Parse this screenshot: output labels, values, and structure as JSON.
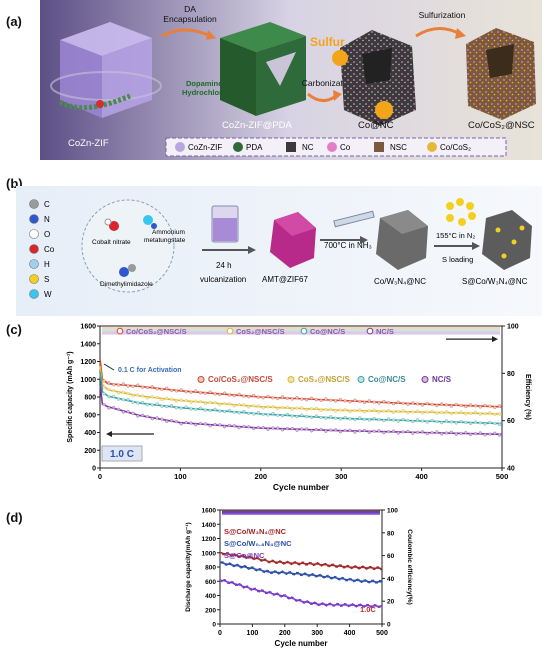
{
  "panel_labels": {
    "a": "(a)",
    "b": "(b)",
    "c": "(c)",
    "d": "(d)"
  },
  "panel_a": {
    "stages": [
      "CoZn-ZIF",
      "CoZn-ZIF@PDA",
      "Co@NC",
      "Co/CoS₂@NSC"
    ],
    "arrows": {
      "encapsulation": "DA\nEncapsulation",
      "dopamine": "Dopamine\nHydrochloride",
      "carbonization": "Carbonization",
      "sulfurization": "Sulfurization",
      "sulfur": "Sulfur"
    },
    "legend": [
      "CoZn-ZIF",
      "PDA",
      "NC",
      "Co",
      "NSC",
      "Co/CoS₂"
    ],
    "colors": {
      "bg": "#6b5f8e",
      "zif": "#b9a6e0",
      "pda": "#2f6b3a",
      "nc": "#3a3a3a",
      "co": "#e47dc8",
      "nsc": "#7a5a3a",
      "cos2": "#e6b83a",
      "sulfur": "#f2a51a",
      "arrow": "#e8803a"
    }
  },
  "panel_b": {
    "legend": [
      {
        "sym": "C",
        "color": "#9a9a9a"
      },
      {
        "sym": "N",
        "color": "#2f58d0"
      },
      {
        "sym": "O",
        "color": "#ffffff"
      },
      {
        "sym": "Co",
        "color": "#d8262a"
      },
      {
        "sym": "H",
        "color": "#9fd0ee"
      },
      {
        "sym": "S",
        "color": "#f3d020"
      },
      {
        "sym": "W",
        "color": "#39c6ee"
      }
    ],
    "reagents": [
      "Cobalt nitrate",
      "Ammonium\nmetatungstate",
      "Dimethylimidazole"
    ],
    "steps": [
      "24 h",
      "vulcanization",
      "700°C in NH₃",
      "155°C in N₂",
      "S loading"
    ],
    "products": [
      "AMT@ZIF67",
      "Co/W₃N₄@NC",
      "S@Co/W₃N₄@NC"
    ]
  },
  "chart_data": [
    {
      "type": "line",
      "xlabel": "Cycle number",
      "ylabel": "Specific capacity (mAh g⁻¹)",
      "ylabel2": "Efficiency (%)",
      "xlim": [
        0,
        500
      ],
      "ylim": [
        0,
        1600
      ],
      "ylim2": [
        40,
        100
      ],
      "xticks": [
        0,
        100,
        200,
        300,
        400,
        500
      ],
      "yticks": [
        0,
        200,
        400,
        600,
        800,
        1000,
        1200,
        1400,
        1600
      ],
      "yticks2": [
        40,
        60,
        80,
        100
      ],
      "annotations": [
        "0.1 C for Activation",
        "1.0 C"
      ],
      "legend_top": [
        "Co/CoS₂@NSC/S",
        "CoS₂@NSC/S",
        "Co@NC/S",
        "NC/S"
      ],
      "legend_mid": [
        "Co/CoS₂@NSC/S",
        "CoS₂@NSC/S",
        "Co@NC/S",
        "NC/S"
      ],
      "series": [
        {
          "name": "Co/CoS₂@NSC/S",
          "color": "#d0453a",
          "marker_color": "#f0c8b0",
          "eff": 99,
          "points": [
            [
              0,
              1230
            ],
            [
              3,
              1000
            ],
            [
              10,
              950
            ],
            [
              50,
              920
            ],
            [
              100,
              870
            ],
            [
              200,
              800
            ],
            [
              300,
              760
            ],
            [
              400,
              720
            ],
            [
              500,
              690
            ]
          ]
        },
        {
          "name": "CoS₂@NSC/S",
          "color": "#d8b838",
          "marker_color": "#f2e6a6",
          "eff": 98,
          "points": [
            [
              0,
              1150
            ],
            [
              3,
              940
            ],
            [
              10,
              880
            ],
            [
              50,
              810
            ],
            [
              100,
              760
            ],
            [
              200,
              690
            ],
            [
              300,
              650
            ],
            [
              400,
              630
            ],
            [
              500,
              610
            ]
          ]
        },
        {
          "name": "Co@NC/S",
          "color": "#3aa0a0",
          "marker_color": "#bde6e6",
          "eff": 98,
          "points": [
            [
              0,
              1080
            ],
            [
              3,
              860
            ],
            [
              10,
              810
            ],
            [
              50,
              730
            ],
            [
              100,
              680
            ],
            [
              200,
              610
            ],
            [
              300,
              560
            ],
            [
              400,
              530
            ],
            [
              500,
              500
            ]
          ]
        },
        {
          "name": "NC/S",
          "color": "#7a3a9a",
          "marker_color": "#d8b8e6",
          "eff": 97,
          "points": [
            [
              0,
              950
            ],
            [
              3,
              720
            ],
            [
              10,
              690
            ],
            [
              50,
              590
            ],
            [
              100,
              510
            ],
            [
              200,
              450
            ],
            [
              300,
              420
            ],
            [
              400,
              400
            ],
            [
              500,
              380
            ]
          ]
        }
      ]
    },
    {
      "type": "line",
      "xlabel": "Cycle number",
      "ylabel": "Discharge capacity(mAh g⁻¹)",
      "ylabel2": "Coulombic efficiency(%)",
      "xlim": [
        0,
        500
      ],
      "ylim": [
        0,
        1600
      ],
      "ylim2": [
        0,
        100
      ],
      "xticks": [
        0,
        100,
        200,
        300,
        400,
        500
      ],
      "yticks": [
        0,
        200,
        400,
        600,
        800,
        1000,
        1200,
        1400,
        1600
      ],
      "yticks2": [
        0,
        20,
        40,
        60,
        80,
        100
      ],
      "annotations": [
        "1.0C"
      ],
      "series": [
        {
          "name": "S@Co/W₃N₄@NC",
          "color": "#a02828",
          "eff": 99,
          "points": [
            [
              0,
              1000
            ],
            [
              50,
              960
            ],
            [
              100,
              930
            ],
            [
              150,
              880
            ],
            [
              200,
              860
            ],
            [
              250,
              850
            ],
            [
              300,
              840
            ],
            [
              350,
              820
            ],
            [
              400,
              800
            ],
            [
              450,
              790
            ],
            [
              500,
              780
            ]
          ]
        },
        {
          "name": "S@Co/W₀.₈N₄@NC",
          "color": "#2c4fa8",
          "eff": 98,
          "points": [
            [
              0,
              860
            ],
            [
              50,
              820
            ],
            [
              100,
              780
            ],
            [
              150,
              730
            ],
            [
              200,
              720
            ],
            [
              250,
              700
            ],
            [
              300,
              680
            ],
            [
              350,
              650
            ],
            [
              400,
              620
            ],
            [
              450,
              600
            ],
            [
              500,
              590
            ]
          ]
        },
        {
          "name": "S@Co@NC",
          "color": "#7a38c8",
          "eff": 97,
          "points": [
            [
              0,
              620
            ],
            [
              50,
              560
            ],
            [
              100,
              490
            ],
            [
              150,
              440
            ],
            [
              200,
              390
            ],
            [
              250,
              320
            ],
            [
              300,
              280
            ],
            [
              350,
              270
            ],
            [
              400,
              265
            ],
            [
              450,
              255
            ],
            [
              500,
              250
            ]
          ]
        }
      ]
    }
  ]
}
